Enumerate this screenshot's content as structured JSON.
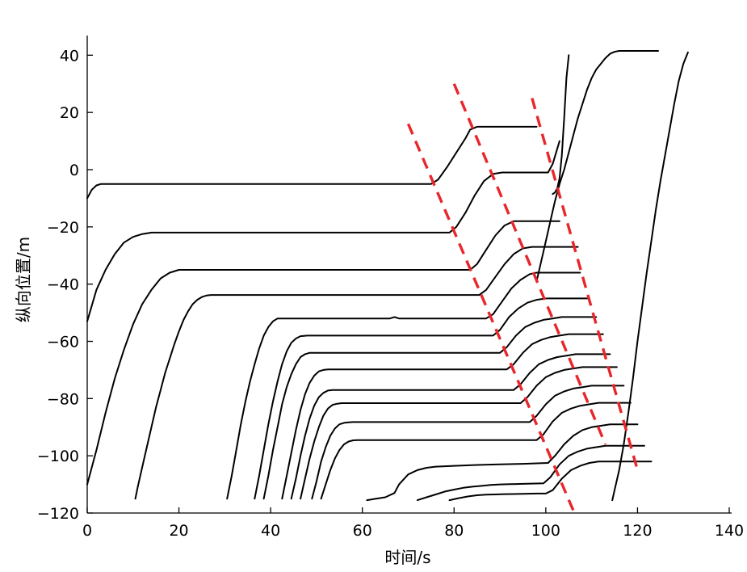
{
  "chart_data": {
    "type": "line",
    "title": "",
    "xlabel": "时间/s",
    "ylabel": "纵向位置/m",
    "xlim": [
      0,
      140
    ],
    "ylim": [
      -120,
      48
    ],
    "xticks": [
      0,
      20,
      40,
      60,
      80,
      100,
      120,
      140
    ],
    "yticks": [
      -120,
      -100,
      -80,
      -60,
      -40,
      -20,
      0,
      20,
      40
    ],
    "grid": false,
    "legend": "none",
    "series_color": "#000000",
    "wave_color": "#e8262b",
    "series": [
      {
        "x": [
          0,
          1,
          2,
          3,
          5,
          75,
          76.5,
          78.5,
          80.5,
          82.5,
          83.5,
          85,
          98
        ],
        "y": [
          -10,
          -7,
          -5.5,
          -5,
          -5,
          -5,
          -3.5,
          1,
          6,
          11,
          14,
          15,
          15
        ]
      },
      {
        "x": [
          0,
          2,
          4,
          6,
          8,
          10,
          12,
          14,
          16,
          79,
          80.5,
          82.5,
          84.5,
          86.5,
          88.5,
          90.5,
          100.5,
          101.5,
          103
        ],
        "y": [
          -53,
          -42,
          -35,
          -29.5,
          -25.5,
          -23.5,
          -22.5,
          -22,
          -22,
          -22,
          -20,
          -15,
          -9,
          -4,
          -1.5,
          -1,
          -1,
          2,
          10
        ]
      },
      {
        "x": [
          0,
          2,
          4,
          6,
          8,
          10,
          12,
          14,
          16,
          18,
          20,
          22,
          83.5,
          85,
          87,
          89,
          91,
          93,
          95,
          103
        ],
        "y": [
          -110,
          -98,
          -85,
          -73,
          -63,
          -54,
          -47,
          -42,
          -38,
          -36,
          -35,
          -35,
          -35,
          -33,
          -28,
          -23,
          -19.5,
          -18,
          -18,
          -18
        ]
      },
      {
        "x": [
          10.5,
          11,
          12,
          13,
          14,
          15,
          16,
          17,
          18,
          19,
          20,
          21,
          22,
          23,
          24,
          25,
          26,
          27,
          28,
          29,
          31,
          85.5,
          87,
          89,
          91,
          93,
          95,
          97,
          107
        ],
        "y": [
          -115,
          -111,
          -104,
          -97,
          -90,
          -83,
          -77,
          -71,
          -66,
          -61,
          -56.5,
          -52.5,
          -49.5,
          -47,
          -45.5,
          -44.5,
          -44,
          -43.8,
          -43.8,
          -43.8,
          -43.8,
          -43.8,
          -42,
          -37.5,
          -33,
          -29.5,
          -27.5,
          -27,
          -27
        ]
      },
      {
        "x": [
          30.5,
          31.5,
          32.5,
          33.5,
          34.5,
          35.5,
          36.5,
          37.5,
          38.5,
          39.5,
          40.5,
          41.5,
          43,
          66,
          67,
          68,
          87,
          88.5,
          90.5,
          92.5,
          94.5,
          96.5,
          98,
          107.5
        ],
        "y": [
          -115,
          -107,
          -98,
          -89,
          -81,
          -74,
          -68,
          -62.5,
          -58,
          -55,
          -53,
          -52,
          -52,
          -52,
          -51.5,
          -52,
          -52,
          -50.5,
          -46,
          -41.5,
          -38.5,
          -36.5,
          -36,
          -36
        ]
      },
      {
        "x": [
          36.5,
          37.5,
          38.5,
          39.5,
          40.5,
          41.5,
          42.5,
          43.5,
          44.5,
          45.5,
          46.5,
          48,
          50,
          88.5,
          90,
          92,
          94,
          96,
          98,
          100,
          109.5
        ],
        "y": [
          -115,
          -107,
          -98,
          -89,
          -81,
          -74,
          -68,
          -63.5,
          -60.5,
          -59,
          -58.2,
          -58,
          -58,
          -58,
          -56,
          -51.5,
          -48.5,
          -46.5,
          -45.5,
          -45,
          -45
        ]
      },
      {
        "x": [
          38.5,
          39.5,
          40.5,
          41.5,
          42.5,
          43.5,
          44.5,
          45.5,
          46.5,
          47.5,
          48.5,
          50,
          52,
          90,
          91.5,
          93.5,
          95.5,
          97.5,
          99.5,
          101.5,
          103.5,
          111
        ],
        "y": [
          -115,
          -107,
          -98,
          -90,
          -82,
          -76,
          -71.5,
          -68,
          -65.5,
          -64.5,
          -64,
          -64,
          -64,
          -64,
          -62,
          -58,
          -55,
          -53.5,
          -52.5,
          -52,
          -51.5,
          -51.5
        ]
      },
      {
        "x": [
          42.5,
          43.5,
          44.5,
          45.5,
          46.5,
          47.5,
          48.5,
          49.5,
          50.5,
          51.5,
          52.5,
          54,
          56,
          91.5,
          93,
          95,
          97,
          99,
          101,
          103,
          105,
          112.5
        ],
        "y": [
          -115,
          -107,
          -99,
          -91,
          -84,
          -78.5,
          -74.5,
          -72,
          -70.5,
          -70,
          -69.8,
          -69.8,
          -69.8,
          -69.8,
          -68,
          -64,
          -61,
          -59.5,
          -58.5,
          -58,
          -57.5,
          -57.5
        ]
      },
      {
        "x": [
          44.5,
          45.5,
          46.5,
          47.5,
          48.5,
          49.5,
          50.5,
          51.5,
          52.5,
          53.5,
          54.5,
          56,
          58,
          93,
          94.5,
          96.5,
          98.5,
          100.5,
          102.5,
          104.5,
          106.5,
          114
        ],
        "y": [
          -115,
          -108,
          -100,
          -93,
          -87,
          -82.5,
          -79.5,
          -78,
          -77.2,
          -77,
          -77,
          -77,
          -77,
          -77,
          -75,
          -71,
          -68,
          -66.5,
          -65.5,
          -65,
          -64.5,
          -64.5
        ]
      },
      {
        "x": [
          46.5,
          47.5,
          48.5,
          49.5,
          50.5,
          51.5,
          52.5,
          53.5,
          54.5,
          55.5,
          56.5,
          58,
          60,
          94.5,
          96,
          98,
          100,
          102,
          104,
          106,
          108,
          115.5
        ],
        "y": [
          -115,
          -108,
          -101,
          -95,
          -90,
          -86,
          -83.5,
          -82.2,
          -81.8,
          -81.6,
          -81.6,
          -81.6,
          -81.6,
          -81.6,
          -79.5,
          -75.5,
          -72.5,
          -71,
          -70,
          -69.5,
          -69,
          -69
        ]
      },
      {
        "x": [
          49,
          50,
          51,
          52,
          53,
          54,
          55,
          56,
          57,
          58,
          59,
          60.5,
          62.5,
          96.5,
          98,
          100,
          102,
          104,
          106,
          108,
          110,
          117
        ],
        "y": [
          -115,
          -109,
          -102,
          -97,
          -93,
          -90.5,
          -89,
          -88.5,
          -88.3,
          -88.2,
          -88.2,
          -88.2,
          -88.2,
          -88.2,
          -86,
          -82,
          -79,
          -77.5,
          -76.5,
          -76,
          -75.5,
          -75.5
        ]
      },
      {
        "x": [
          51,
          52,
          53,
          54,
          55,
          56,
          57,
          58,
          59,
          60,
          61,
          62.5,
          64.5,
          98,
          99.5,
          101.5,
          103.5,
          105.5,
          107.5,
          109.5,
          111.5,
          118.5
        ],
        "y": [
          -115,
          -110,
          -105,
          -101,
          -98,
          -96,
          -95,
          -94.6,
          -94.5,
          -94.5,
          -94.5,
          -94.5,
          -94.5,
          -94.5,
          -92.5,
          -88,
          -85,
          -83.5,
          -82.5,
          -82,
          -81.5,
          -81.5
        ]
      },
      {
        "x": [
          61,
          63,
          65,
          67,
          68,
          70,
          72,
          74,
          76,
          80,
          85,
          90,
          95,
          100.5,
          102,
          104,
          106,
          108,
          110,
          112,
          114,
          120
        ],
        "y": [
          -115.5,
          -115,
          -114.5,
          -113,
          -110,
          -106.5,
          -105,
          -104.2,
          -103.8,
          -103.5,
          -103.2,
          -103,
          -102.8,
          -102.5,
          -100,
          -96,
          -93,
          -91,
          -90,
          -89.5,
          -89,
          -89
        ]
      },
      {
        "x": [
          72,
          74,
          76,
          78,
          80,
          82,
          84,
          86,
          88,
          90,
          95,
          99.5,
          101,
          103,
          105,
          107,
          109,
          111,
          113,
          121.5
        ],
        "y": [
          -115.5,
          -114.5,
          -113.5,
          -112.5,
          -111.8,
          -111.2,
          -110.8,
          -110.5,
          -110.2,
          -110,
          -109.8,
          -109.6,
          -107.5,
          -103,
          -100,
          -98.5,
          -97.5,
          -97,
          -96.5,
          -96.5
        ]
      },
      {
        "x": [
          79,
          81,
          83,
          85,
          87,
          89,
          91,
          95,
          98,
          100,
          101.5,
          103.5,
          105.5,
          107.5,
          109.5,
          111.5,
          123
        ],
        "y": [
          -115.5,
          -114.8,
          -114.2,
          -113.8,
          -113.6,
          -113.5,
          -113.4,
          -113.3,
          -113.2,
          -113.2,
          -112,
          -108,
          -105,
          -103.5,
          -102.5,
          -102,
          -102
        ]
      },
      {
        "x": [
          98,
          99,
          100,
          101,
          102,
          103,
          104,
          105,
          106,
          107,
          108,
          109,
          110,
          111,
          112,
          113,
          114,
          115,
          116,
          117,
          118,
          124.5
        ],
        "y": [
          -39,
          -32,
          -25,
          -18,
          -11,
          -5,
          0,
          6,
          12,
          18,
          23,
          28,
          32,
          35,
          37,
          39,
          40.5,
          41.2,
          41.5,
          41.5,
          41.5,
          41.5
        ]
      },
      {
        "x": [
          101.5,
          102,
          102.5,
          103,
          103.5,
          104,
          104.5,
          105
        ],
        "y": [
          -8.5,
          -8,
          -6.5,
          -3,
          5,
          18,
          32,
          40
        ]
      },
      {
        "x": [
          114.5,
          115,
          116,
          117,
          118,
          119,
          120,
          121,
          122,
          123,
          124,
          125,
          126,
          127,
          128,
          129,
          130,
          131
        ],
        "y": [
          -115.5,
          -112,
          -105,
          -96,
          -85,
          -73,
          -60,
          -48,
          -36,
          -25,
          -14,
          -4,
          5,
          14,
          23,
          31,
          37,
          41
        ]
      }
    ],
    "wave_lines": [
      {
        "x": [
          70,
          106.5
        ],
        "y": [
          16,
          -121
        ]
      },
      {
        "x": [
          80,
          113
        ],
        "y": [
          30,
          -96
        ]
      },
      {
        "x": [
          97,
          120
        ],
        "y": [
          25,
          -105
        ]
      }
    ]
  }
}
